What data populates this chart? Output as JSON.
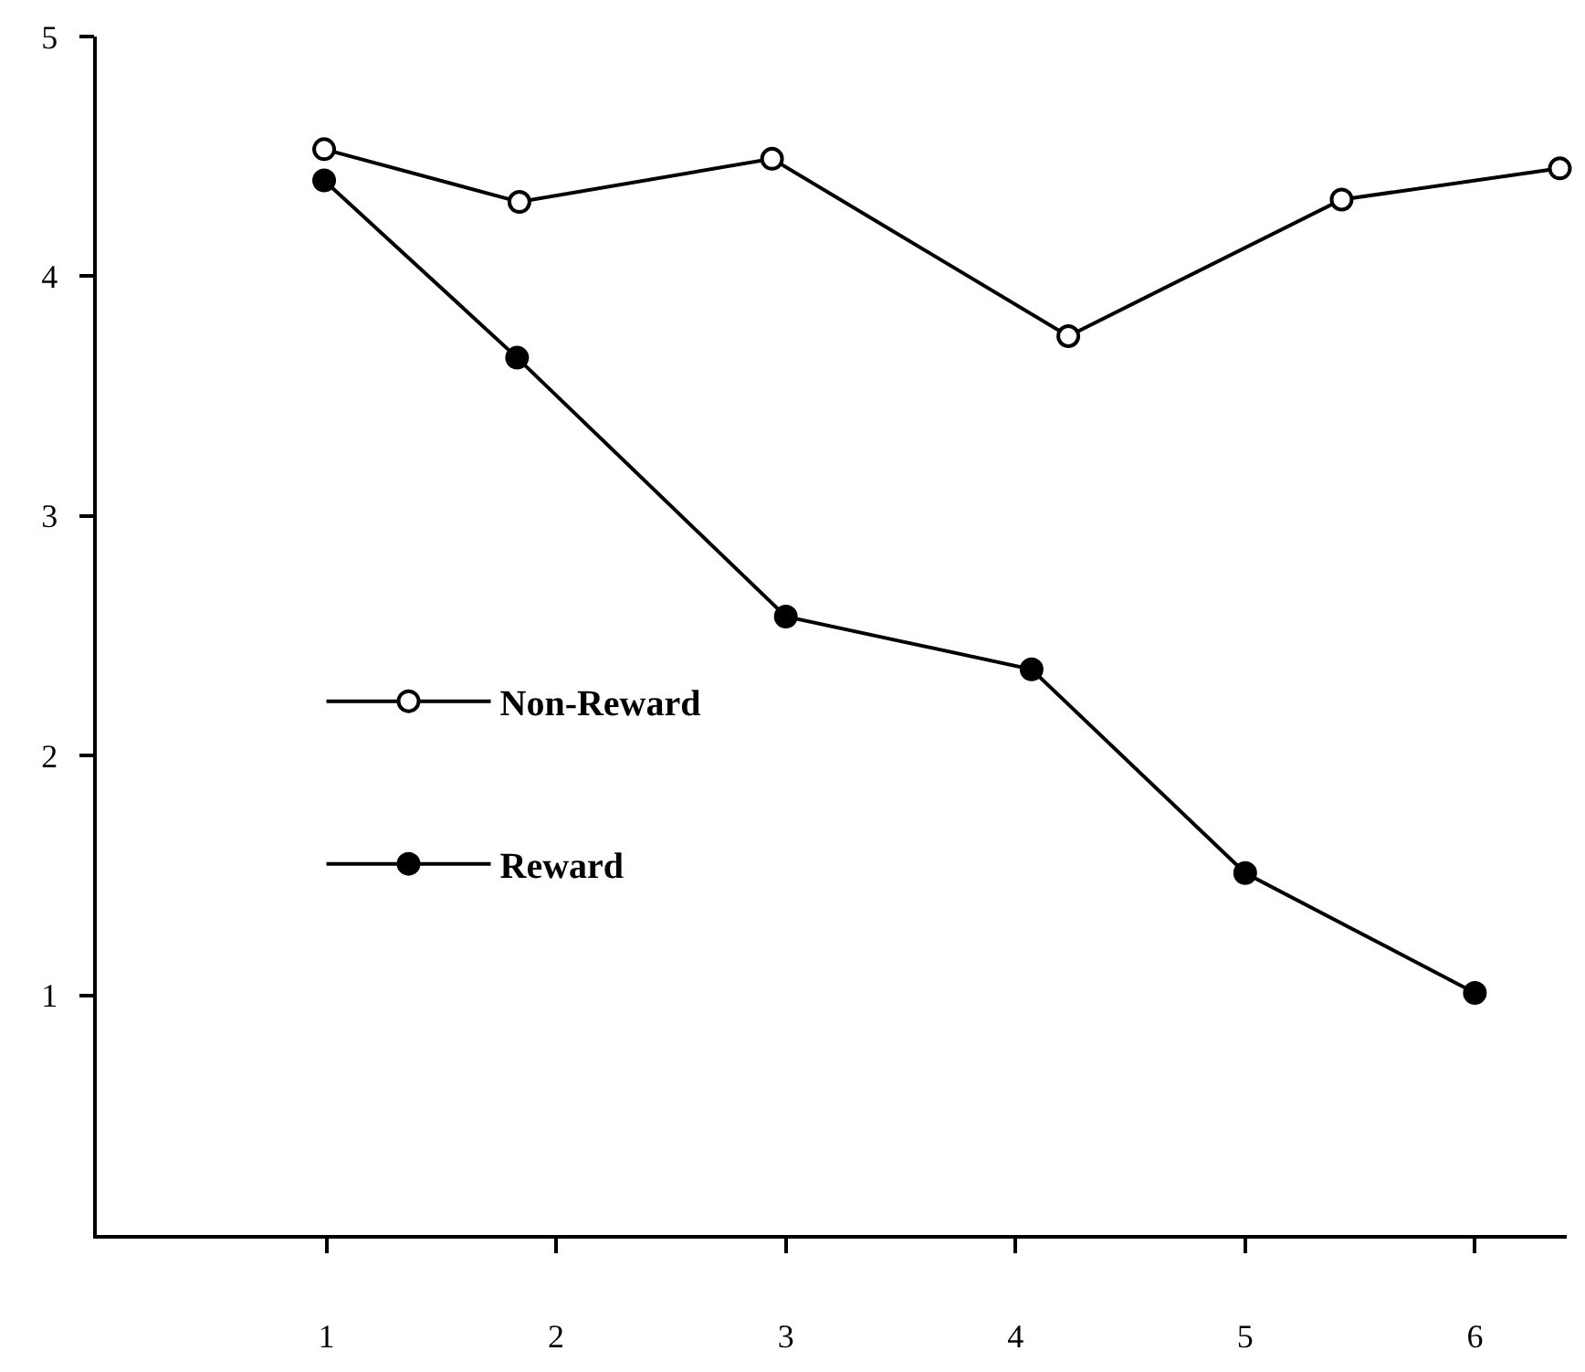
{
  "chart_data": {
    "type": "line",
    "xlim": [
      0,
      6.4
    ],
    "xticks": [
      1,
      2,
      3,
      4,
      5,
      6
    ],
    "ylim": [
      0,
      5
    ],
    "yticks": [
      1,
      2,
      3,
      4,
      5
    ],
    "legend": "left",
    "marker": "circle",
    "line_style": "solid",
    "series": [
      {
        "name": "Non-Reward",
        "color": "#000000",
        "x": [
          0.99,
          1.84,
          2.94,
          4.23,
          5.42,
          6.37
        ],
        "values": [
          4.53,
          4.31,
          4.49,
          3.75,
          4.32,
          4.45
        ]
      },
      {
        "name": "Reward",
        "color": "#000000",
        "x": [
          0.99,
          1.83,
          3.0,
          4.07,
          5.0,
          6.0
        ],
        "values": [
          4.4,
          3.66,
          2.58,
          2.36,
          1.51,
          1.01
        ]
      }
    ]
  }
}
